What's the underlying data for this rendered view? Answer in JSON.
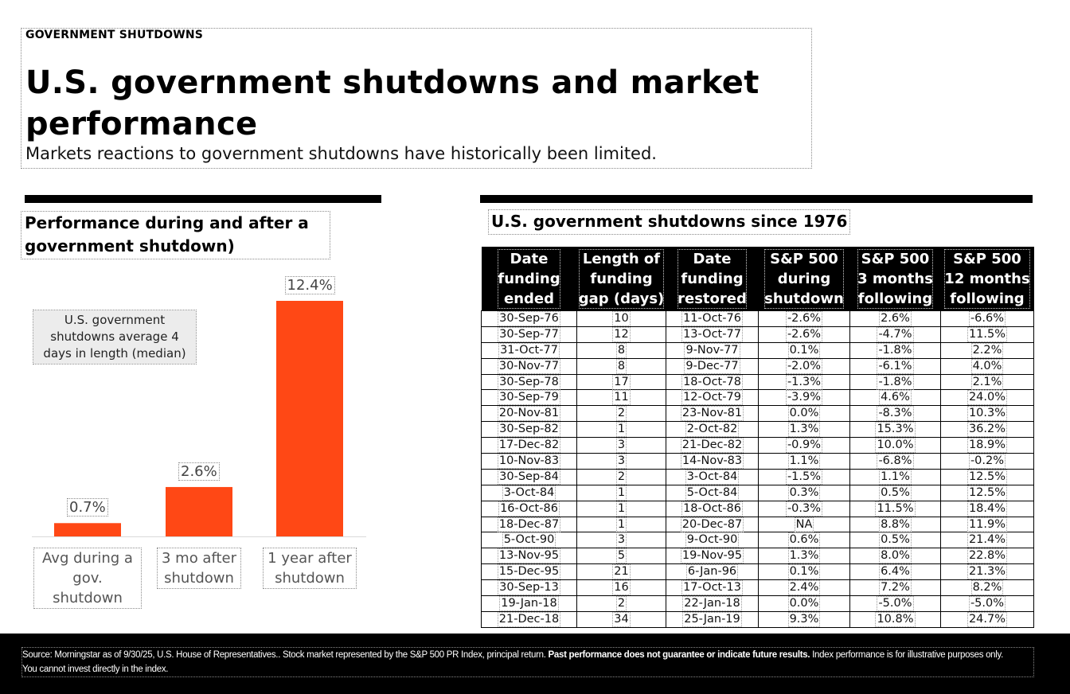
{
  "header": {
    "eyebrow": "GOVERNMENT SHUTDOWNS",
    "title": "U.S. government shutdowns and market performance",
    "subtitle": "Markets reactions to government shutdowns have historically been limited."
  },
  "chart_data": {
    "type": "bar",
    "title": "Performance during and after a government shutdown)",
    "categories": [
      "Avg during a gov. shutdown",
      "3 mo after shutdown",
      "1 year after shutdown"
    ],
    "category_lines": [
      [
        "Avg during a",
        "gov.",
        "shutdown"
      ],
      [
        "3 mo after",
        "shutdown"
      ],
      [
        "1 year after",
        "shutdown"
      ]
    ],
    "values": [
      0.7,
      2.6,
      12.4
    ],
    "value_labels": [
      "0.7%",
      "2.6%",
      "12.4%"
    ],
    "unit": "%",
    "annotation": "U.S. government shutdowns average 4 days in length (median)",
    "color": "#ff4815",
    "ylim": [
      0,
      12.4
    ],
    "grid": false,
    "legend": "none"
  },
  "table": {
    "title": "U.S. government shutdowns since 1976",
    "headers": [
      [
        "Date",
        "funding",
        "ended"
      ],
      [
        "Length of",
        "funding",
        "gap (days)"
      ],
      [
        "Date",
        "funding",
        "restored"
      ],
      [
        "S&P 500",
        "during",
        "shutdown"
      ],
      [
        "S&P 500",
        "3 months",
        "following"
      ],
      [
        "S&P 500",
        "12 months",
        "following"
      ]
    ],
    "rows": [
      [
        "30-Sep-76",
        "10",
        "11-Oct-76",
        "-2.6%",
        "2.6%",
        "-6.6%"
      ],
      [
        "30-Sep-77",
        "12",
        "13-Oct-77",
        "-2.6%",
        "-4.7%",
        "11.5%"
      ],
      [
        "31-Oct-77",
        "8",
        "9-Nov-77",
        "0.1%",
        "-1.8%",
        "2.2%"
      ],
      [
        "30-Nov-77",
        "8",
        "9-Dec-77",
        "-2.0%",
        "-6.1%",
        "4.0%"
      ],
      [
        "30-Sep-78",
        "17",
        "18-Oct-78",
        "-1.3%",
        "-1.8%",
        "2.1%"
      ],
      [
        "30-Sep-79",
        "11",
        "12-Oct-79",
        "-3.9%",
        "4.6%",
        "24.0%"
      ],
      [
        "20-Nov-81",
        "2",
        "23-Nov-81",
        "0.0%",
        "-8.3%",
        "10.3%"
      ],
      [
        "30-Sep-82",
        "1",
        "2-Oct-82",
        "1.3%",
        "15.3%",
        "36.2%"
      ],
      [
        "17-Dec-82",
        "3",
        "21-Dec-82",
        "-0.9%",
        "10.0%",
        "18.9%"
      ],
      [
        "10-Nov-83",
        "3",
        "14-Nov-83",
        "1.1%",
        "-6.8%",
        "-0.2%"
      ],
      [
        "30-Sep-84",
        "2",
        "3-Oct-84",
        "-1.5%",
        "1.1%",
        "12.5%"
      ],
      [
        "3-Oct-84",
        "1",
        "5-Oct-84",
        "0.3%",
        "0.5%",
        "12.5%"
      ],
      [
        "16-Oct-86",
        "1",
        "18-Oct-86",
        "-0.3%",
        "11.5%",
        "18.4%"
      ],
      [
        "18-Dec-87",
        "1",
        "20-Dec-87",
        "NA",
        "8.8%",
        "11.9%"
      ],
      [
        "5-Oct-90",
        "3",
        "9-Oct-90",
        "0.6%",
        "0.5%",
        "21.4%"
      ],
      [
        "13-Nov-95",
        "5",
        "19-Nov-95",
        "1.3%",
        "8.0%",
        "22.8%"
      ],
      [
        "15-Dec-95",
        "21",
        "6-Jan-96",
        "0.1%",
        "6.4%",
        "21.3%"
      ],
      [
        "30-Sep-13",
        "16",
        "17-Oct-13",
        "2.4%",
        "7.2%",
        "8.2%"
      ],
      [
        "19-Jan-18",
        "2",
        "22-Jan-18",
        "0.0%",
        "-5.0%",
        "-5.0%"
      ],
      [
        "21-Dec-18",
        "34",
        "25-Jan-19",
        "9.3%",
        "10.8%",
        "24.7%"
      ]
    ]
  },
  "footer": {
    "text_1": "Source: Morningstar as of 9/30/25, U.S. House of Representatives.. Stock market represented by the S&P 500 PR Index, principal return. ",
    "text_bold": "Past performance does not guarantee or indicate future results.",
    "text_2": " Index performance is for illustrative purposes only.",
    "text_3": "You cannot invest directly in the index."
  }
}
